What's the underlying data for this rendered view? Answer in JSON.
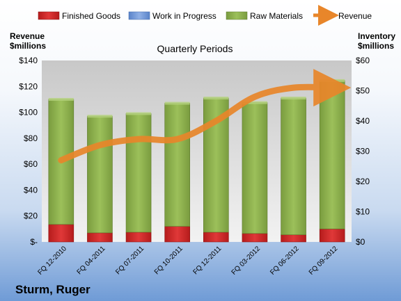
{
  "company": "Sturm, Ruger",
  "chart_data": {
    "type": "bar",
    "subtype": "stacked-bar-with-line",
    "title": "Quarterly Periods",
    "left_axis_label": [
      "Revenue",
      "$millions"
    ],
    "right_axis_label": [
      "Inventory",
      "$millions"
    ],
    "categories": [
      "FQ 12-2010",
      "FQ 04-2011",
      "FQ 07-2011",
      "FQ 10-2011",
      "FQ 12-2011",
      "FQ 03-2012",
      "FQ 06-2012",
      "FQ 09-2012"
    ],
    "left_ylim": [
      0,
      140
    ],
    "left_ticks": [
      0,
      20,
      40,
      60,
      80,
      100,
      120,
      140
    ],
    "left_tick_labels": [
      "$-",
      "$20",
      "$40",
      "$60",
      "$80",
      "$100",
      "$120",
      "$140"
    ],
    "right_ylim": [
      0,
      60
    ],
    "right_ticks": [
      0,
      10,
      20,
      30,
      40,
      50,
      60
    ],
    "right_tick_labels": [
      "$0",
      "$10",
      "$20",
      "$30",
      "$40",
      "$50",
      "$60"
    ],
    "legend_position": "top",
    "legend": [
      "Finished Goods",
      "Work in Progress",
      "Raw Materials",
      "Revenue"
    ],
    "series": [
      {
        "name": "Finished Goods",
        "axis": "left",
        "color": "#cc2222",
        "values": [
          13.5,
          7,
          7.5,
          12,
          7.5,
          6.5,
          5.5,
          10
        ]
      },
      {
        "name": "Work in Progress",
        "axis": "left",
        "color": "#6b93d6",
        "values": [
          0,
          0,
          0,
          0,
          0,
          0,
          0,
          0
        ]
      },
      {
        "name": "Raw Materials",
        "axis": "left",
        "color": "#8cb04d",
        "values": [
          96.5,
          90,
          91.5,
          95,
          103.5,
          101,
          105.5,
          114.5
        ]
      },
      {
        "name": "Revenue",
        "axis": "right",
        "type": "line",
        "color": "#e8862a",
        "values": [
          27,
          32,
          34,
          34,
          40,
          48,
          51,
          51
        ]
      }
    ],
    "grid": false
  }
}
